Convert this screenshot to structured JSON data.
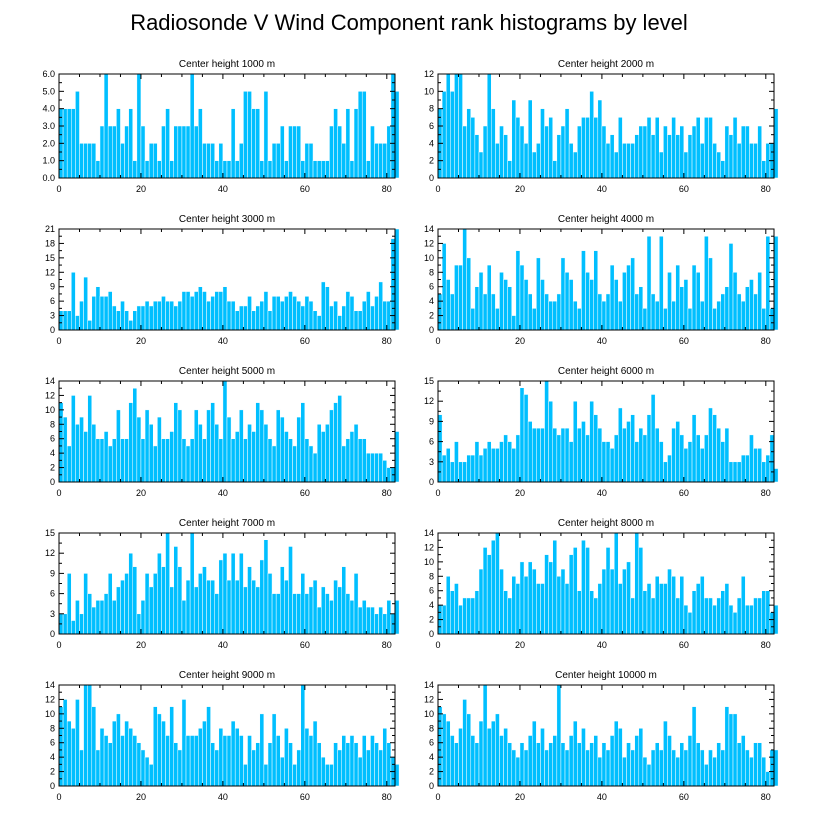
{
  "chart_data": {
    "title": "Radiosonde V Wind Component rank histograms by level",
    "type": "bar",
    "bar_color": "#00bfff",
    "xlim": [
      0,
      82
    ],
    "xticks": [
      0,
      20,
      40,
      60,
      80
    ],
    "panels": [
      {
        "title": "Center height 1000 m",
        "type": "bar",
        "ylim": [
          0,
          6
        ],
        "yticks": [
          0,
          1,
          2,
          3,
          4,
          5,
          6
        ],
        "ytick_labels": [
          "0.0",
          "1.0",
          "2.0",
          "3.0",
          "4.0",
          "5.0",
          "6.0"
        ],
        "ytick_side": "left",
        "values": [
          4,
          4,
          4,
          4,
          5,
          2,
          2,
          2,
          2,
          1,
          3,
          6,
          3,
          3,
          4,
          2,
          3,
          4,
          1,
          6,
          3,
          1,
          2,
          2,
          1,
          3,
          4,
          1,
          3,
          3,
          3,
          3,
          6,
          3,
          4,
          2,
          2,
          2,
          1,
          2,
          1,
          1,
          4,
          1,
          2,
          5,
          5,
          4,
          4,
          1,
          5,
          1,
          2,
          2,
          3,
          1,
          3,
          3,
          3,
          1,
          2,
          2,
          1,
          1,
          1,
          1,
          3,
          4,
          3,
          2,
          4,
          1,
          4,
          5,
          5,
          1,
          3,
          2,
          2,
          2,
          3,
          6,
          5
        ]
      },
      {
        "title": "Center height 2000 m",
        "type": "bar",
        "ylim": [
          0,
          12
        ],
        "yticks": [
          0,
          2,
          4,
          6,
          8,
          10,
          12
        ],
        "ytick_labels": [
          "0",
          "2",
          "4",
          "6",
          "8",
          "10",
          "12"
        ],
        "ytick_side": "left",
        "values": [
          8,
          10,
          12,
          10,
          12,
          12,
          6,
          8,
          7,
          5,
          3,
          6,
          12,
          8,
          4,
          6,
          5,
          2,
          9,
          7,
          6,
          4,
          9,
          3,
          4,
          8,
          6,
          7,
          2,
          5,
          6,
          8,
          4,
          3,
          6,
          7,
          7,
          10,
          7,
          9,
          6,
          4,
          5,
          3,
          7,
          4,
          4,
          4,
          5,
          6,
          6,
          7,
          5,
          7,
          3,
          6,
          5,
          7,
          5,
          6,
          3,
          5,
          6,
          7,
          4,
          7,
          7,
          4,
          3,
          2,
          6,
          5,
          7,
          4,
          6,
          6,
          4,
          4,
          6,
          2,
          4,
          4,
          8
        ]
      },
      {
        "title": "Center height 3000 m",
        "type": "bar",
        "ylim": [
          0,
          21
        ],
        "yticks": [
          0,
          3,
          6,
          9,
          12,
          15,
          18,
          21
        ],
        "ytick_labels": [
          "0",
          "3",
          "6",
          "9",
          "12",
          "15",
          "18",
          "21"
        ],
        "ytick_side": "left",
        "values": [
          4,
          4,
          4,
          12,
          3,
          6,
          11,
          2,
          7,
          9,
          7,
          7,
          8,
          5,
          4,
          6,
          4,
          2,
          4,
          5,
          5,
          6,
          5,
          6,
          6,
          7,
          6,
          6,
          5,
          6,
          8,
          8,
          7,
          8,
          9,
          8,
          6,
          7,
          8,
          8,
          9,
          6,
          6,
          4,
          5,
          5,
          7,
          4,
          5,
          6,
          8,
          4,
          7,
          7,
          6,
          7,
          8,
          7,
          6,
          5,
          7,
          6,
          4,
          3,
          10,
          9,
          5,
          6,
          3,
          5,
          8,
          7,
          4,
          4,
          6,
          8,
          5,
          7,
          10,
          6,
          6,
          19,
          21
        ]
      },
      {
        "title": "Center height 4000 m",
        "type": "bar",
        "ylim": [
          0,
          14
        ],
        "yticks": [
          0,
          2,
          4,
          6,
          8,
          10,
          12,
          14
        ],
        "ytick_labels": [
          "0",
          "2",
          "4",
          "6",
          "8",
          "10",
          "12",
          "14"
        ],
        "ytick_side": "left",
        "values": [
          5,
          12,
          7,
          5,
          9,
          9,
          14,
          10,
          3,
          6,
          8,
          5,
          9,
          5,
          3,
          8,
          7,
          6,
          2,
          11,
          9,
          7,
          5,
          3,
          10,
          7,
          5,
          4,
          4,
          5,
          10,
          8,
          7,
          4,
          3,
          11,
          8,
          7,
          11,
          5,
          4,
          5,
          9,
          7,
          4,
          8,
          9,
          10,
          5,
          6,
          3,
          13,
          5,
          4,
          13,
          3,
          8,
          4,
          9,
          6,
          7,
          3,
          9,
          8,
          4,
          13,
          10,
          3,
          4,
          5,
          6,
          12,
          8,
          5,
          4,
          6,
          7,
          5,
          8,
          3,
          13,
          3,
          13
        ]
      },
      {
        "title": "Center height 5000 m",
        "type": "bar",
        "ylim": [
          0,
          14
        ],
        "yticks": [
          0,
          2,
          4,
          6,
          8,
          10,
          12,
          14
        ],
        "ytick_labels": [
          "0",
          "2",
          "4",
          "6",
          "8",
          "10",
          "12",
          "14"
        ],
        "ytick_side": "left",
        "values": [
          11,
          9,
          5,
          12,
          8,
          9,
          7,
          12,
          8,
          6,
          6,
          7,
          5,
          6,
          10,
          6,
          6,
          11,
          13,
          9,
          6,
          10,
          8,
          5,
          9,
          6,
          6,
          7,
          11,
          10,
          6,
          5,
          6,
          10,
          8,
          6,
          10,
          11,
          8,
          6,
          14,
          9,
          6,
          7,
          10,
          6,
          8,
          7,
          11,
          10,
          8,
          6,
          5,
          10,
          9,
          7,
          6,
          5,
          9,
          11,
          6,
          5,
          4,
          8,
          7,
          8,
          10,
          11,
          12,
          5,
          6,
          7,
          8,
          6,
          6,
          4,
          4,
          4,
          4,
          3,
          2,
          2,
          7
        ]
      },
      {
        "title": "Center height 6000 m",
        "type": "bar",
        "ylim": [
          0,
          15
        ],
        "yticks": [
          0,
          3,
          6,
          9,
          12,
          15
        ],
        "ytick_labels": [
          "0",
          "3",
          "6",
          "9",
          "12",
          "15"
        ],
        "ytick_side": "left",
        "values": [
          10,
          4,
          5,
          3,
          6,
          3,
          3,
          4,
          4,
          6,
          4,
          5,
          6,
          5,
          5,
          6,
          7,
          6,
          5,
          7,
          14,
          13,
          9,
          8,
          8,
          8,
          15,
          12,
          8,
          7,
          8,
          8,
          6,
          12,
          8,
          9,
          7,
          12,
          10,
          8,
          6,
          6,
          5,
          7,
          11,
          8,
          9,
          10,
          6,
          8,
          7,
          10,
          13,
          8,
          6,
          3,
          4,
          8,
          9,
          7,
          5,
          6,
          10,
          7,
          5,
          7,
          11,
          10,
          8,
          6,
          8,
          3,
          3,
          3,
          4,
          4,
          7,
          5,
          5,
          3,
          4,
          7,
          2
        ]
      },
      {
        "title": "Center height 7000 m",
        "type": "bar",
        "ylim": [
          0,
          15
        ],
        "yticks": [
          0,
          3,
          6,
          9,
          12,
          15
        ],
        "ytick_labels": [
          "0",
          "3",
          "6",
          "9",
          "12",
          "15"
        ],
        "ytick_side": "left",
        "values": [
          3,
          3,
          9,
          2,
          5,
          3,
          9,
          6,
          4,
          5,
          5,
          6,
          9,
          5,
          7,
          8,
          9,
          12,
          10,
          3,
          5,
          9,
          7,
          9,
          12,
          10,
          15,
          7,
          13,
          10,
          5,
          8,
          15,
          7,
          9,
          10,
          8,
          8,
          6,
          11,
          12,
          8,
          12,
          8,
          12,
          7,
          10,
          8,
          7,
          11,
          14,
          9,
          6,
          6,
          10,
          8,
          13,
          6,
          6,
          9,
          6,
          7,
          8,
          4,
          7,
          6,
          5,
          8,
          7,
          10,
          6,
          5,
          9,
          4,
          5,
          4,
          4,
          3,
          4,
          3,
          5,
          3,
          5
        ]
      },
      {
        "title": "Center height 8000 m",
        "type": "bar",
        "ylim": [
          0,
          14
        ],
        "yticks": [
          0,
          2,
          4,
          6,
          8,
          10,
          12,
          14
        ],
        "ytick_labels": [
          "0",
          "2",
          "4",
          "6",
          "8",
          "10",
          "12",
          "14"
        ],
        "ytick_side": "left",
        "values": [
          4,
          4,
          8,
          6,
          7,
          4,
          5,
          5,
          5,
          6,
          9,
          12,
          11,
          13,
          14,
          9,
          6,
          5,
          8,
          7,
          10,
          8,
          10,
          9,
          7,
          7,
          11,
          10,
          13,
          8,
          9,
          7,
          11,
          12,
          6,
          13,
          12,
          6,
          5,
          7,
          9,
          12,
          9,
          14,
          7,
          9,
          10,
          5,
          14,
          12,
          6,
          7,
          5,
          8,
          7,
          7,
          9,
          8,
          5,
          8,
          4,
          3,
          6,
          7,
          8,
          5,
          5,
          4,
          5,
          6,
          7,
          4,
          3,
          5,
          8,
          4,
          4,
          5,
          5,
          6,
          6,
          3,
          4
        ]
      },
      {
        "title": "Center height 9000 m",
        "type": "bar",
        "ylim": [
          0,
          14
        ],
        "yticks": [
          0,
          2,
          4,
          6,
          8,
          10,
          12,
          14
        ],
        "ytick_labels": [
          "0",
          "2",
          "4",
          "6",
          "8",
          "10",
          "12",
          "14"
        ],
        "ytick_side": "left",
        "values": [
          11,
          12,
          9,
          8,
          12,
          5,
          14,
          14,
          11,
          5,
          8,
          7,
          6,
          9,
          10,
          7,
          9,
          8,
          7,
          6,
          5,
          4,
          3,
          11,
          10,
          9,
          7,
          11,
          6,
          5,
          12,
          7,
          7,
          7,
          8,
          9,
          11,
          6,
          5,
          8,
          7,
          7,
          9,
          8,
          7,
          3,
          7,
          5,
          6,
          10,
          3,
          6,
          10,
          7,
          4,
          8,
          6,
          3,
          5,
          14,
          8,
          7,
          9,
          6,
          4,
          3,
          3,
          6,
          5,
          7,
          6,
          7,
          6,
          4,
          7,
          5,
          7,
          6,
          5,
          8,
          6,
          4,
          3
        ]
      },
      {
        "title": "Center height 10000 m",
        "type": "bar",
        "ylim": [
          0,
          14
        ],
        "yticks": [
          0,
          2,
          4,
          6,
          8,
          10,
          12,
          14
        ],
        "ytick_labels": [
          "0",
          "2",
          "4",
          "6",
          "8",
          "10",
          "12",
          "14"
        ],
        "ytick_side": "left",
        "values": [
          11,
          10,
          9,
          7,
          6,
          8,
          12,
          10,
          7,
          6,
          9,
          14,
          8,
          9,
          10,
          7,
          8,
          6,
          5,
          4,
          6,
          5,
          7,
          9,
          6,
          8,
          5,
          6,
          7,
          14,
          6,
          5,
          7,
          9,
          6,
          8,
          5,
          6,
          7,
          4,
          6,
          5,
          7,
          9,
          8,
          4,
          6,
          5,
          7,
          8,
          4,
          3,
          5,
          6,
          5,
          9,
          7,
          5,
          4,
          6,
          5,
          7,
          11,
          6,
          5,
          3,
          5,
          4,
          6,
          5,
          11,
          10,
          10,
          6,
          7,
          5,
          4,
          6,
          6,
          4,
          2,
          5,
          5
        ]
      }
    ]
  }
}
